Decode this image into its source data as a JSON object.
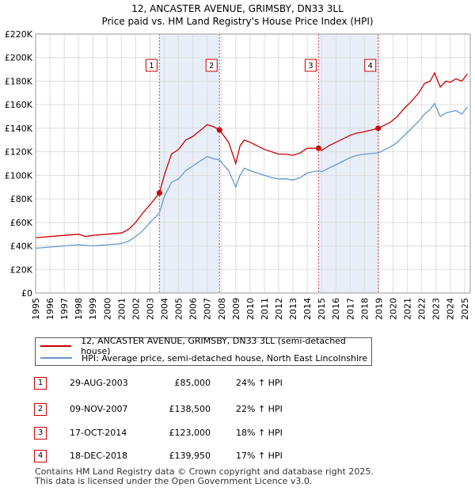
{
  "title_line1": "12, ANCASTER AVENUE, GRIMSBY, DN33 3LL",
  "title_line2": "Price paid vs. HM Land Registry's House Price Index (HPI)",
  "legend": {
    "series1": "12, ANCASTER AVENUE, GRIMSBY, DN33 3LL (semi-detached house)",
    "series2": "HPI: Average price, semi-detached house, North East Lincolnshire"
  },
  "transactions": [
    {
      "num": "1",
      "date": "29-AUG-2003",
      "price": "£85,000",
      "hpi": "24% ↑ HPI"
    },
    {
      "num": "2",
      "date": "09-NOV-2007",
      "price": "£138,500",
      "hpi": "22% ↑ HPI"
    },
    {
      "num": "3",
      "date": "17-OCT-2014",
      "price": "£123,000",
      "hpi": "18% ↑ HPI"
    },
    {
      "num": "4",
      "date": "18-DEC-2018",
      "price": "£139,950",
      "hpi": "17% ↑ HPI"
    }
  ],
  "footer_line1": "Contains HM Land Registry data © Crown copyright and database right 2025.",
  "footer_line2": "This data is licensed under the Open Government Licence v3.0.",
  "colors": {
    "property": "#cc0000",
    "hpi": "#6699cc",
    "shade": "#e8eef8",
    "grid": "#dddddd"
  },
  "chart_data": {
    "type": "line",
    "title": "12, ANCASTER AVENUE, GRIMSBY, DN33 3LL",
    "xlabel": "",
    "ylabel": "",
    "xlim": [
      1995,
      2025.4
    ],
    "ylim": [
      0,
      220000
    ],
    "y_ticks": [
      0,
      20000,
      40000,
      60000,
      80000,
      100000,
      120000,
      140000,
      160000,
      180000,
      200000,
      220000
    ],
    "y_tick_labels": [
      "£0",
      "£20K",
      "£40K",
      "£60K",
      "£80K",
      "£100K",
      "£120K",
      "£140K",
      "£160K",
      "£180K",
      "£200K",
      "£220K"
    ],
    "x_ticks": [
      "1995",
      "1996",
      "1997",
      "1998",
      "1999",
      "2000",
      "2001",
      "2002",
      "2003",
      "2004",
      "2005",
      "2006",
      "2007",
      "2008",
      "2009",
      "2010",
      "2011",
      "2012",
      "2013",
      "2014",
      "2015",
      "2016",
      "2017",
      "2018",
      "2019",
      "2020",
      "2021",
      "2022",
      "2023",
      "2024",
      "2025"
    ],
    "shaded_ranges": [
      [
        2003.66,
        2007.86
      ],
      [
        2014.79,
        2018.96
      ]
    ],
    "sales": [
      {
        "label": "1",
        "x": 2003.66,
        "y": 85000
      },
      {
        "label": "2",
        "x": 2007.86,
        "y": 138500
      },
      {
        "label": "3",
        "x": 2014.79,
        "y": 123000
      },
      {
        "label": "4",
        "x": 2018.96,
        "y": 139950
      }
    ],
    "series": [
      {
        "name": "12, ANCASTER AVENUE, GRIMSBY, DN33 3LL (semi-detached house)",
        "x": [
          1995.0,
          1996.0,
          1997.0,
          1998.0,
          1998.5,
          1999.0,
          2000.0,
          2001.0,
          2001.5,
          2002.0,
          2002.5,
          2003.0,
          2003.66,
          2004.0,
          2004.5,
          2005.0,
          2005.5,
          2006.0,
          2006.5,
          2007.0,
          2007.5,
          2007.86,
          2008.2,
          2008.5,
          2009.0,
          2009.3,
          2009.6,
          2010.0,
          2010.5,
          2011.0,
          2011.5,
          2012.0,
          2012.5,
          2013.0,
          2013.5,
          2014.0,
          2014.79,
          2015.0,
          2015.5,
          2016.0,
          2016.5,
          2017.0,
          2017.5,
          2018.0,
          2018.96,
          2019.3,
          2019.8,
          2020.3,
          2020.8,
          2021.3,
          2021.8,
          2022.2,
          2022.6,
          2022.9,
          2023.3,
          2023.7,
          2024.0,
          2024.4,
          2024.8,
          2025.2
        ],
        "values": [
          47000,
          48000,
          49000,
          50000,
          48000,
          49000,
          50000,
          51000,
          54000,
          60000,
          68000,
          75000,
          85000,
          100000,
          118000,
          122000,
          130000,
          133000,
          138000,
          143000,
          141000,
          138500,
          133000,
          128000,
          110000,
          125000,
          130000,
          128000,
          125000,
          122000,
          120000,
          118000,
          118000,
          117000,
          119000,
          123000,
          123000,
          121000,
          125000,
          128000,
          131000,
          134000,
          136000,
          137000,
          139950,
          142000,
          145000,
          150000,
          157000,
          163000,
          170000,
          178000,
          180000,
          187000,
          175000,
          180000,
          179000,
          182000,
          180000,
          186000
        ]
      },
      {
        "name": "HPI: Average price, semi-detached house, North East Lincolnshire",
        "x": [
          1995.0,
          1996.0,
          1997.0,
          1998.0,
          1999.0,
          2000.0,
          2001.0,
          2001.5,
          2002.0,
          2002.5,
          2003.0,
          2003.66,
          2004.0,
          2004.5,
          2005.0,
          2005.5,
          2006.0,
          2006.5,
          2007.0,
          2007.5,
          2007.86,
          2008.2,
          2008.5,
          2009.0,
          2009.3,
          2009.6,
          2010.0,
          2010.5,
          2011.0,
          2011.5,
          2012.0,
          2012.5,
          2013.0,
          2013.5,
          2014.0,
          2014.79,
          2015.0,
          2015.5,
          2016.0,
          2016.5,
          2017.0,
          2017.5,
          2018.0,
          2018.96,
          2019.3,
          2019.8,
          2020.3,
          2020.8,
          2021.3,
          2021.8,
          2022.2,
          2022.6,
          2022.9,
          2023.3,
          2023.7,
          2024.0,
          2024.4,
          2024.8,
          2025.2
        ],
        "values": [
          38000,
          39000,
          40000,
          41000,
          40000,
          41000,
          42000,
          44000,
          48000,
          53000,
          60000,
          68000,
          82000,
          94000,
          97000,
          104000,
          108000,
          112000,
          116000,
          114000,
          113000,
          108000,
          104000,
          90000,
          100000,
          106000,
          104000,
          102000,
          100000,
          98000,
          97000,
          97000,
          96000,
          98000,
          102000,
          104000,
          103000,
          106000,
          109000,
          112000,
          115000,
          117000,
          118000,
          119000,
          121000,
          124000,
          128000,
          134000,
          140000,
          146000,
          152000,
          156000,
          161000,
          150000,
          153000,
          154000,
          155000,
          152000,
          158000
        ]
      }
    ]
  }
}
